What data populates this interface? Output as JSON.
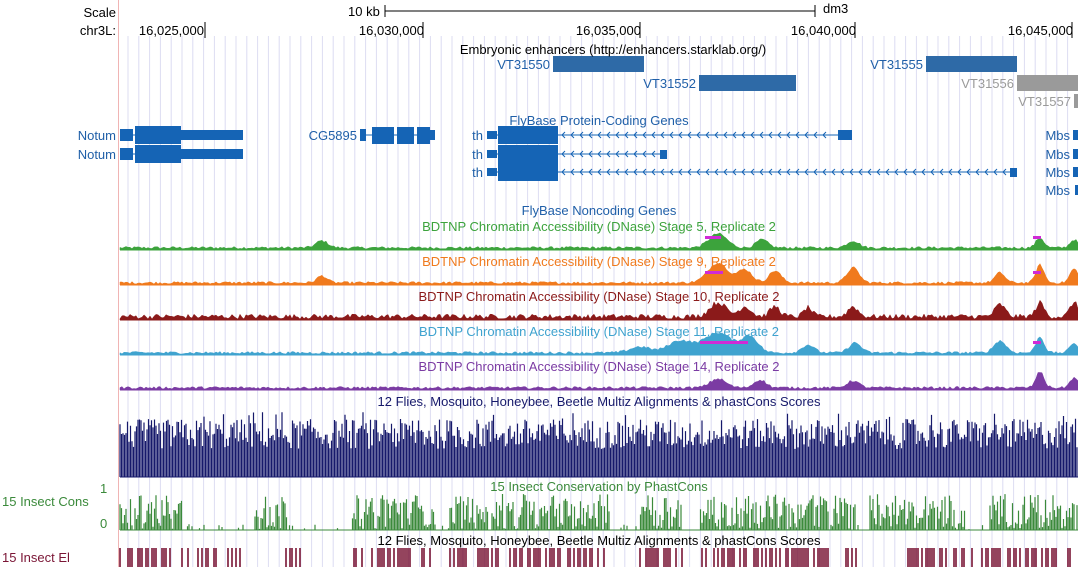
{
  "ruler": {
    "scale_label": "Scale",
    "chrom_label": "chr3L:",
    "scale_bar_text": "10 kb",
    "assembly": "dm3",
    "positions": [
      "16,025,000",
      "16,030,000",
      "16,035,000",
      "16,040,000",
      "16,045,000"
    ]
  },
  "tracks": {
    "enhancers": {
      "title": "Embryonic enhancers (http://enhancers.starklab.org/)",
      "items": [
        {
          "name": "VT31550",
          "color": "#2e6aa7"
        },
        {
          "name": "VT31552",
          "color": "#2e6aa7"
        },
        {
          "name": "VT31555",
          "color": "#2e6aa7"
        },
        {
          "name": "VT31556",
          "color": "#9a9a9a"
        },
        {
          "name": "VT31557",
          "color": "#9a9a9a"
        }
      ]
    },
    "genes": {
      "title": "FlyBase Protein-Coding Genes",
      "color": "#1564b5",
      "left_labels": [
        "Notum",
        "Notum",
        "CG5895",
        "th",
        "th",
        "th"
      ],
      "right_labels": [
        "Mbs",
        "Mbs",
        "Mbs",
        "Mbs"
      ]
    },
    "noncoding": {
      "title": "FlyBase Noncoding Genes"
    },
    "dnase": [
      {
        "title": "BDTNP Chromatin Accessibility (DNase) Stage 5, Replicate 2",
        "color": "#3ca33c"
      },
      {
        "title": "BDTNP Chromatin Accessibility (DNase) Stage 9, Replicate 2",
        "color": "#f07a1d"
      },
      {
        "title": "BDTNP Chromatin Accessibility (DNase) Stage 10, Replicate 2",
        "color": "#8b1a1a"
      },
      {
        "title": "BDTNP Chromatin Accessibility (DNase) Stage 11, Replicate 2",
        "color": "#3fa3cf"
      },
      {
        "title": "BDTNP Chromatin Accessibility (DNase) Stage 14, Replicate 2",
        "color": "#7b3ba3"
      }
    ],
    "multiz": {
      "title": "12 Flies, Mosquito, Honeybee, Beetle Multiz Alignments & phastCons Scores",
      "color": "#16196b"
    },
    "conservation": {
      "title": "15 Insect Conservation by PhastCons",
      "side_label": "15 Insect Cons",
      "y_max": "1",
      "y_min": "0",
      "color": "#3b8a3b"
    },
    "elements": {
      "title": "12 Flies, Mosquito, Honeybee, Beetle Multiz Alignments & phastCons Scores",
      "side_label": "15 Insect El",
      "color": "#7a1535"
    }
  }
}
